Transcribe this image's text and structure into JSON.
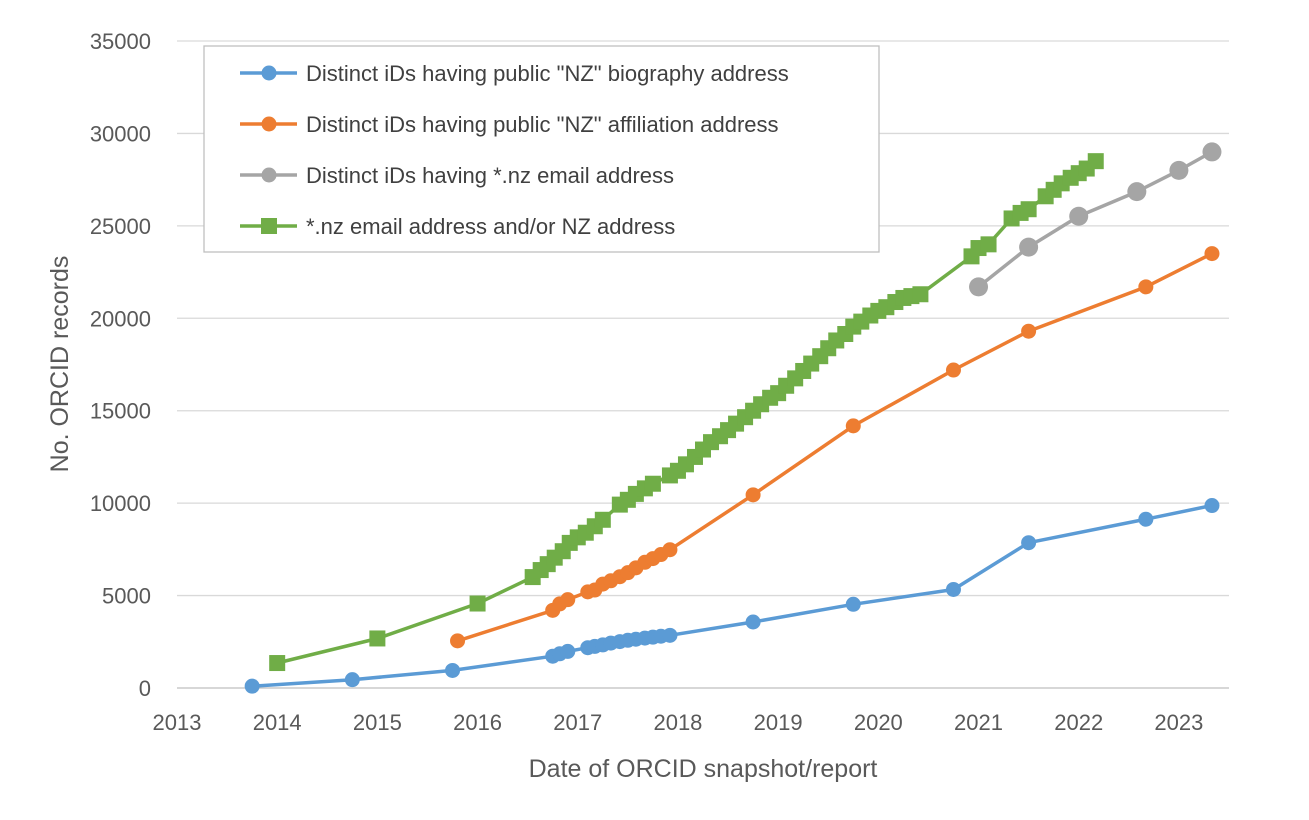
{
  "chart_data": {
    "type": "line",
    "title": "",
    "xlabel": "Date of ORCID snapshot/report",
    "ylabel": "No. ORCID records",
    "xlim": [
      2013,
      2023.5
    ],
    "ylim": [
      0,
      35000
    ],
    "x_ticks": [
      2013,
      2014,
      2015,
      2016,
      2017,
      2018,
      2019,
      2020,
      2021,
      2022,
      2023
    ],
    "y_ticks": [
      0,
      5000,
      10000,
      15000,
      20000,
      25000,
      30000,
      35000
    ],
    "grid": "horizontal",
    "legend_position": "top-left",
    "series": [
      {
        "name": "Distinct iDs having public \"NZ\" biography address",
        "color": "#5B9BD5",
        "marker": "circle",
        "x": [
          2013.75,
          2014.75,
          2015.75,
          2016.75,
          2016.82,
          2016.9,
          2017.1,
          2017.17,
          2017.25,
          2017.33,
          2017.42,
          2017.5,
          2017.58,
          2017.67,
          2017.75,
          2017.83,
          2017.92,
          2018.75,
          2019.75,
          2020.75,
          2021.5,
          2022.67,
          2023.33
        ],
        "y": [
          100,
          450,
          950,
          1720,
          1850,
          1980,
          2180,
          2250,
          2330,
          2430,
          2510,
          2580,
          2640,
          2700,
          2750,
          2800,
          2850,
          3570,
          4530,
          5330,
          7860,
          9130,
          9870
        ]
      },
      {
        "name": "Distinct iDs having public \"NZ\" affiliation address",
        "color": "#ED7D31",
        "marker": "circle",
        "x": [
          2015.8,
          2016.75,
          2016.82,
          2016.9,
          2017.1,
          2017.17,
          2017.25,
          2017.33,
          2017.42,
          2017.5,
          2017.58,
          2017.67,
          2017.75,
          2017.83,
          2017.92,
          2018.75,
          2019.75,
          2020.75,
          2021.5,
          2022.67,
          2023.33
        ],
        "y": [
          2550,
          4200,
          4550,
          4780,
          5200,
          5300,
          5620,
          5800,
          6020,
          6240,
          6500,
          6800,
          7000,
          7220,
          7480,
          10450,
          14180,
          17200,
          19300,
          21700,
          23500
        ]
      },
      {
        "name": "Distinct iDs having *.nz email address",
        "color": "#A5A5A5",
        "marker": "circle",
        "x": [
          2021.0,
          2021.5,
          2022.0,
          2022.58,
          2023.0,
          2023.33
        ],
        "y": [
          21700,
          23850,
          25520,
          26850,
          28000,
          29000
        ]
      },
      {
        "name": "*.nz email address and/or NZ address",
        "color": "#70AD47",
        "marker": "square",
        "x": [
          2014.0,
          2015.0,
          2016.0,
          2016.55,
          2016.63,
          2016.7,
          2016.77,
          2016.85,
          2016.92,
          2017.0,
          2017.08,
          2017.17,
          2017.25,
          2017.42,
          2017.5,
          2017.58,
          2017.67,
          2017.75,
          2017.92,
          2018.0,
          2018.08,
          2018.17,
          2018.25,
          2018.33,
          2018.42,
          2018.5,
          2018.58,
          2018.67,
          2018.75,
          2018.83,
          2018.92,
          2019.0,
          2019.08,
          2019.17,
          2019.25,
          2019.33,
          2019.42,
          2019.5,
          2019.58,
          2019.67,
          2019.75,
          2019.83,
          2019.92,
          2020.0,
          2020.08,
          2020.17,
          2020.25,
          2020.33,
          2020.42,
          2020.93,
          2021.0,
          2021.1,
          2021.33,
          2021.42,
          2021.5,
          2021.67,
          2021.75,
          2021.83,
          2021.92,
          2022.0,
          2022.08,
          2022.17
        ],
        "y": [
          1350,
          2680,
          4570,
          6000,
          6380,
          6700,
          7050,
          7400,
          7850,
          8150,
          8400,
          8750,
          9100,
          9920,
          10180,
          10500,
          10800,
          11050,
          11500,
          11750,
          12100,
          12500,
          12900,
          13300,
          13620,
          13950,
          14300,
          14650,
          15000,
          15350,
          15700,
          15950,
          16350,
          16750,
          17150,
          17550,
          17950,
          18380,
          18800,
          19150,
          19550,
          19820,
          20150,
          20400,
          20600,
          20880,
          21100,
          21200,
          21300,
          23350,
          23800,
          24000,
          25400,
          25700,
          25900,
          26600,
          26950,
          27300,
          27600,
          27850,
          28100,
          28500
        ]
      }
    ]
  }
}
